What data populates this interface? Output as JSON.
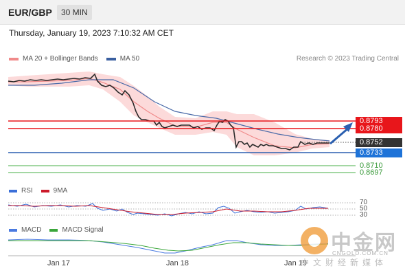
{
  "header": {
    "symbol": "EUR/GBP",
    "timeframe": "30 MIN"
  },
  "datetime": "Thursday, January 19, 2023 7:10:32 AM CET",
  "legend": {
    "ma20_label": "MA 20 + Bollinger Bands",
    "ma50_label": "MA 50",
    "ma20_color": "#f08a8a",
    "ma50_color": "#3a5fa0"
  },
  "credit": "Research © 2023 Trading Central",
  "levels": {
    "r1": "0.8793",
    "r2": "0.8780",
    "current": "0.8752",
    "pivot": "0.8733",
    "s1": "0.8710",
    "s2": "0.8697"
  },
  "rsi": {
    "label": "RSI",
    "ma_label": "9MA",
    "ticks": [
      "70",
      "50",
      "30"
    ],
    "rsi_color": "#3a6fd8",
    "ma_color": "#cc1a2a"
  },
  "macd": {
    "label": "MACD",
    "signal_label": "MACD Signal",
    "macd_color": "#4a7ae0",
    "signal_color": "#3aa63a"
  },
  "x_axis": {
    "labels": [
      "Jan 17",
      "Jan 18",
      "Jan 19"
    ]
  },
  "watermark": {
    "title": "中金网",
    "domain": "CNGOLD.COM.CN",
    "sub": "中文财经新媒体"
  }
}
